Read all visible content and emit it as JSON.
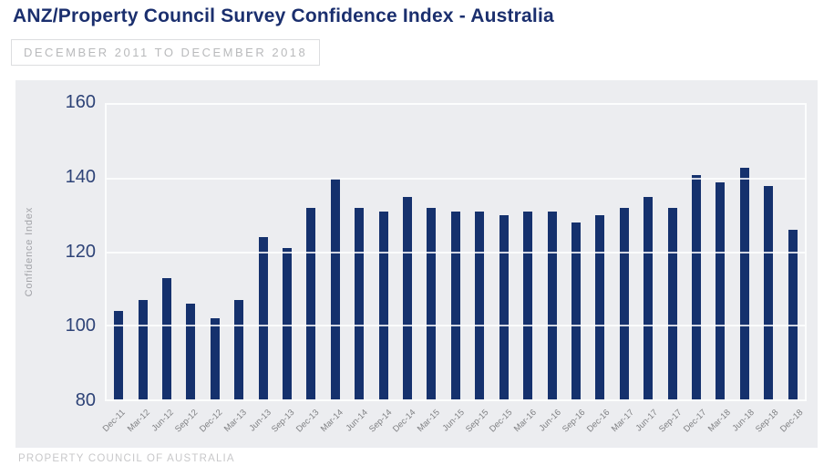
{
  "header": {
    "title": "ANZ/Property Council Survey Confidence Index - Australia",
    "subtitle": "DECEMBER 2011 TO DECEMBER 2018"
  },
  "footer": {
    "text": "PROPERTY COUNCIL OF AUSTRALIA"
  },
  "chart_data": {
    "type": "bar",
    "title": "ANZ/Property Council Survey Confidence Index - Australia",
    "subtitle": "DECEMBER 2011 TO DECEMBER 2018",
    "xlabel": "",
    "ylabel": "Confidence Index",
    "ylim": [
      80,
      160
    ],
    "yticks": [
      160,
      140,
      120,
      100,
      80
    ],
    "grid": true,
    "legend_position": "none",
    "bar_color": "#15316d",
    "title_color": "#1b2f6e",
    "panel_background": "#ecedf0",
    "categories": [
      "Dec-11",
      "Mar-12",
      "Jun-12",
      "Sep-12",
      "Dec-12",
      "Mar-13",
      "Jun-13",
      "Sep-13",
      "Dec-13",
      "Mar-14",
      "Jun-14",
      "Sep-14",
      "Dec-14",
      "Mar-15",
      "Jun-15",
      "Sep-15",
      "Dec-15",
      "Mar-16",
      "Jun-16",
      "Sep-16",
      "Dec-16",
      "Mar-17",
      "Jun-17",
      "Sep-17",
      "Dec-17",
      "Mar-18",
      "Jun-18",
      "Sep-18",
      "Dec-18"
    ],
    "values": [
      104,
      107,
      113,
      106,
      102,
      107,
      124,
      121,
      132,
      140,
      132,
      131,
      135,
      132,
      131,
      131,
      130,
      131,
      131,
      128,
      130,
      132,
      135,
      132,
      141,
      139,
      143,
      138,
      126
    ]
  }
}
